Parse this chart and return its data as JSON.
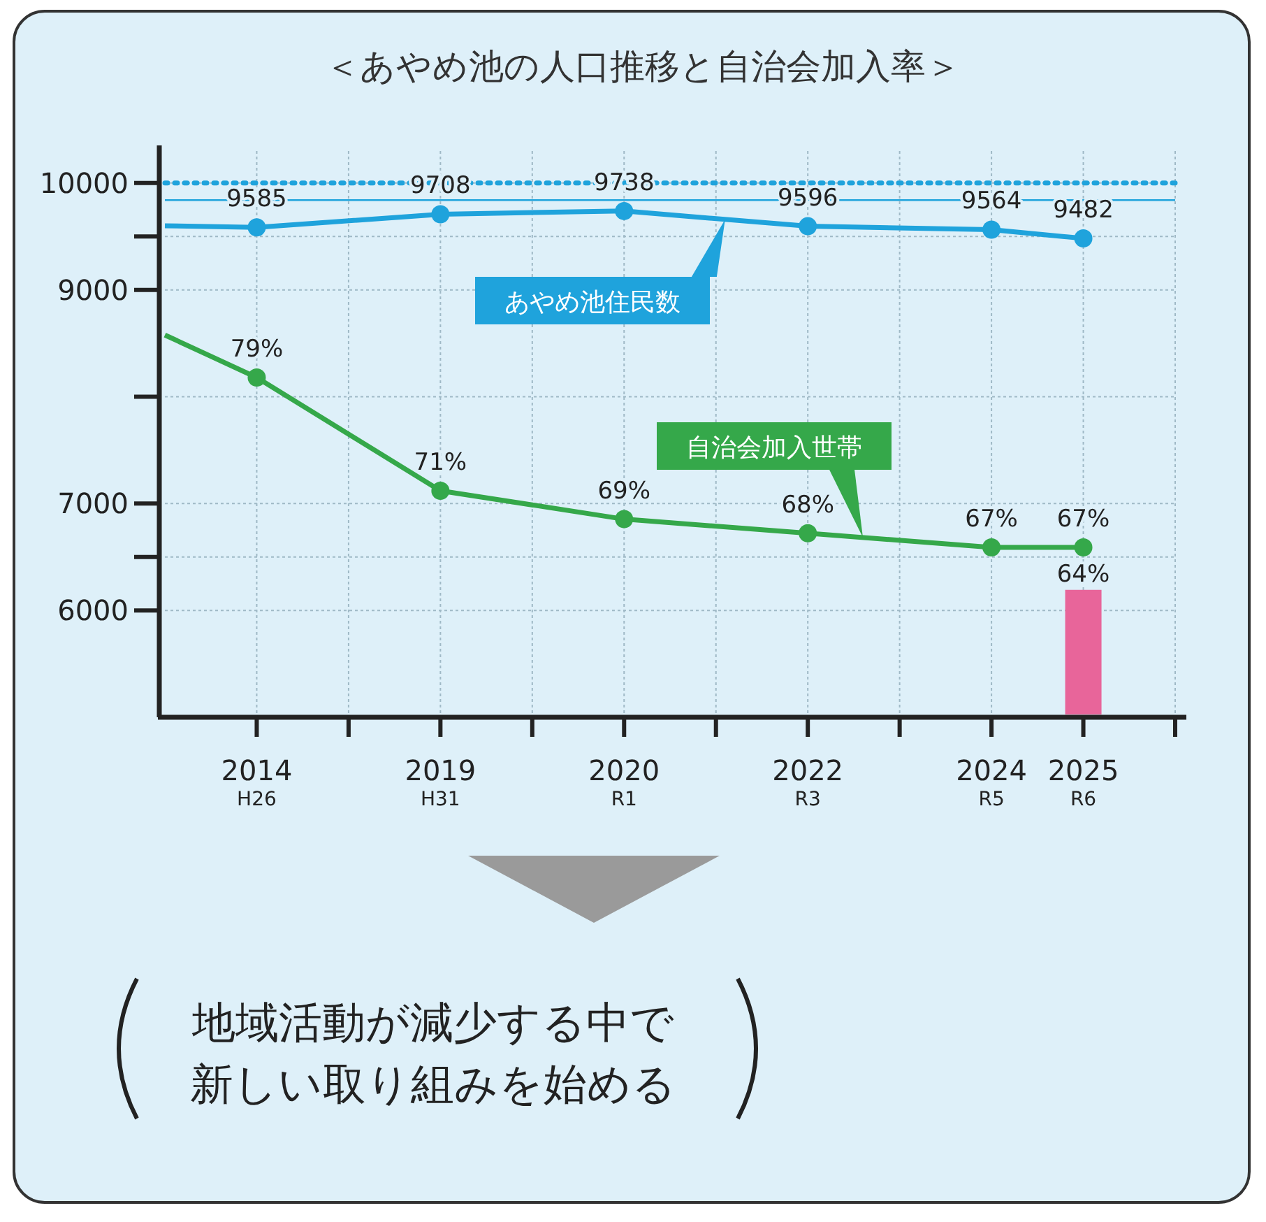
{
  "chart_data": {
    "type": "line",
    "title": "＜あやめ池の人口推移と自治会加入率＞",
    "categories": [
      null,
      "2014$_{H26}$",
      null,
      "2019$_{H31}$",
      null,
      "2020$_{R1}$",
      null,
      "2022$_{R3}$",
      null,
      "2024$_{R5}$",
      "2025$_{R6}$",
      null
    ],
    "ylim": [
      5000,
      10300
    ],
    "yticks": [
      6000,
      {
        "value": 6500,
        "label": null
      },
      7000,
      {
        "value": 8000,
        "label": null
      },
      9000,
      {
        "value": 9500,
        "label": null
      },
      10000
    ],
    "y2lim": [
      55,
      95
    ],
    "grid": true,
    "marker": "circle",
    "line_style": "solid",
    "series": [
      {
        "name": "あやめ池住民数",
        "color": "#1fa3dc",
        "values": [
          9600,
          9585,
          null,
          9708,
          null,
          9738,
          null,
          9596,
          null,
          9564,
          9482,
          null
        ],
        "value_labels": [
          null,
          "9585",
          null,
          "9708",
          null,
          "9738",
          null,
          "9596",
          null,
          "9564",
          "9482",
          null
        ]
      },
      {
        "name": "自治会加入世帯",
        "color": "#35a84a",
        "axis": "y2",
        "values": [
          82,
          79,
          null,
          71,
          null,
          69,
          null,
          68,
          null,
          67,
          67,
          null
        ],
        "value_labels": [
          null,
          "79%",
          null,
          "71%",
          null,
          "69%",
          null,
          "68%",
          null,
          "67%",
          "67%",
          null
        ]
      },
      {
        "type": "bar",
        "color": "#e8659a",
        "axis": "y2",
        "values": [
          null,
          null,
          null,
          null,
          null,
          null,
          null,
          null,
          null,
          null,
          64,
          null
        ],
        "value_labels": [
          null,
          null,
          null,
          null,
          null,
          null,
          null,
          null,
          null,
          null,
          "64%",
          null
        ]
      }
    ],
    "ref_lines": [
      {
        "axis": "y",
        "value": 10000,
        "color": "#1fa3dc",
        "line_style": "dotted"
      },
      {
        "axis": "y",
        "value": 9840,
        "color": "#1fa3dc",
        "line_style": "solid"
      }
    ],
    "annotations": [
      "地域活動が減少する中で新しい取り組みを始める"
    ]
  }
}
